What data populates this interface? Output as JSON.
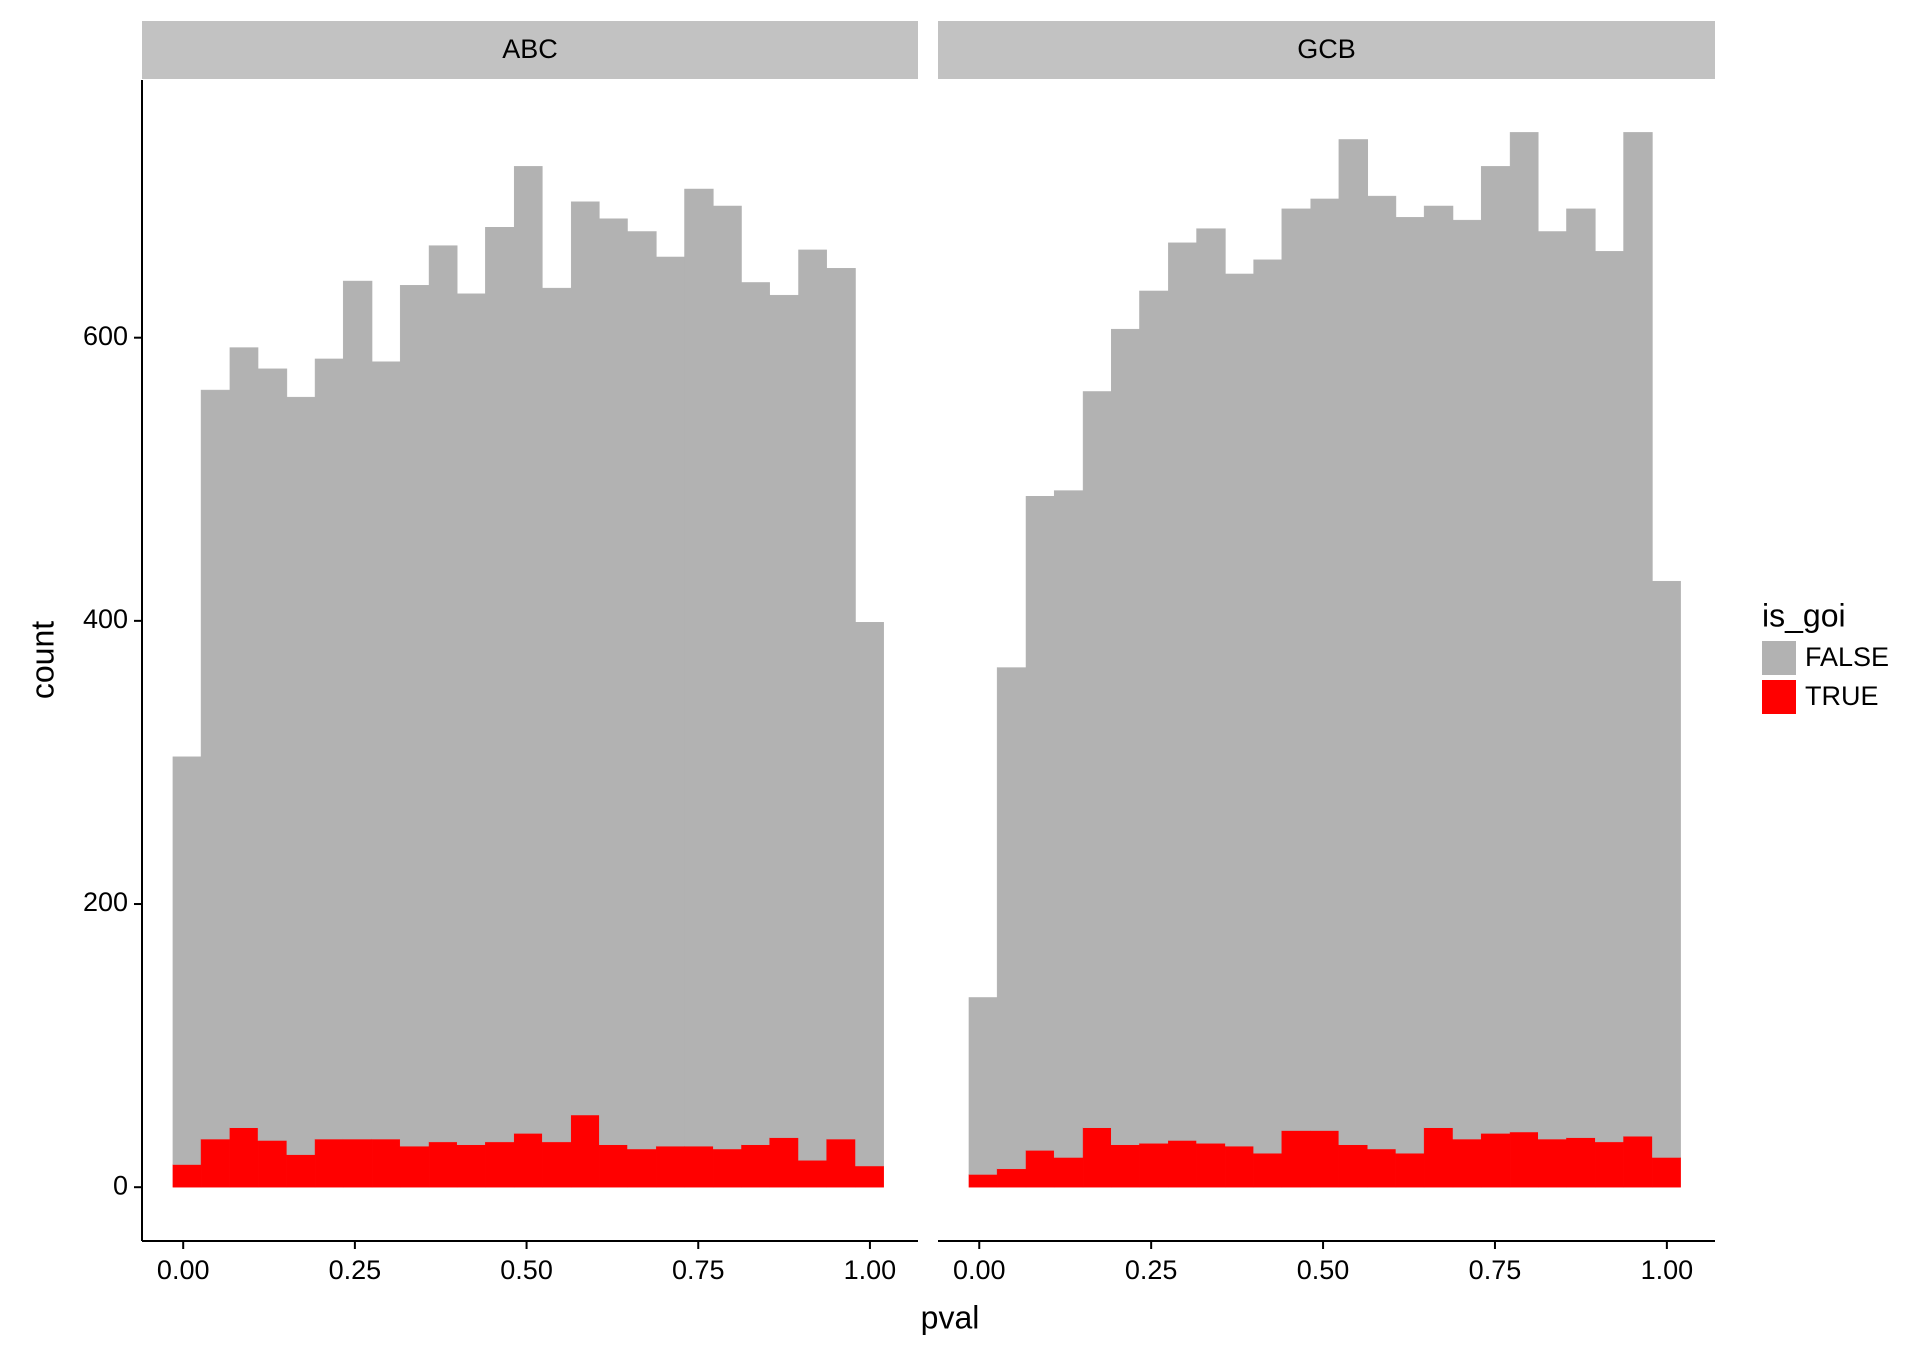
{
  "chart_data": {
    "type": "histogram",
    "x_label": "pval",
    "y_label": "count",
    "legend_title": "is_goi",
    "facets": [
      "ABC",
      "GCB"
    ],
    "bins": [
      -0.015,
      0.026,
      0.068,
      0.109,
      0.151,
      0.192,
      0.233,
      0.275,
      0.316,
      0.358,
      0.399,
      0.44,
      0.482,
      0.523,
      0.565,
      0.606,
      0.647,
      0.689,
      0.73,
      0.772,
      0.813,
      0.854,
      0.896,
      0.937,
      0.979,
      1.02
    ],
    "series": [
      {
        "name": "FALSE",
        "color": "#b2b2b2",
        "values": [
          [
            288,
            529,
            551,
            545,
            535,
            551,
            606,
            549,
            608,
            633,
            601,
            646,
            683,
            603,
            645,
            654,
            648,
            628,
            676,
            666,
            609,
            595,
            643,
            615,
            384
          ],
          [
            125,
            354,
            462,
            471,
            520,
            576,
            602,
            634,
            646,
            616,
            631,
            651,
            658,
            710,
            673,
            661,
            651,
            649,
            683,
            706,
            641,
            656,
            629,
            709,
            407
          ]
        ]
      },
      {
        "name": "TRUE",
        "color": "#ff0000",
        "values": [
          [
            16,
            34,
            42,
            33,
            23,
            34,
            34,
            34,
            29,
            32,
            30,
            32,
            38,
            32,
            51,
            30,
            27,
            29,
            29,
            27,
            30,
            35,
            19,
            34,
            15
          ],
          [
            9,
            13,
            26,
            21,
            42,
            30,
            31,
            33,
            31,
            29,
            24,
            40,
            40,
            30,
            27,
            24,
            42,
            34,
            38,
            39,
            34,
            35,
            32,
            36,
            21
          ]
        ]
      }
    ],
    "xlim": [
      -0.06,
      1.07
    ],
    "xticks": [
      {
        "value": 0,
        "label": "0.00"
      },
      {
        "value": 0.25,
        "label": "0.25"
      },
      {
        "value": 0.5,
        "label": "0.50"
      },
      {
        "value": 0.75,
        "label": "0.75"
      },
      {
        "value": 1,
        "label": "1.00"
      }
    ],
    "ylim": [
      -38,
      782
    ],
    "yticks": [
      0,
      200,
      400,
      600
    ],
    "stacked": true
  }
}
